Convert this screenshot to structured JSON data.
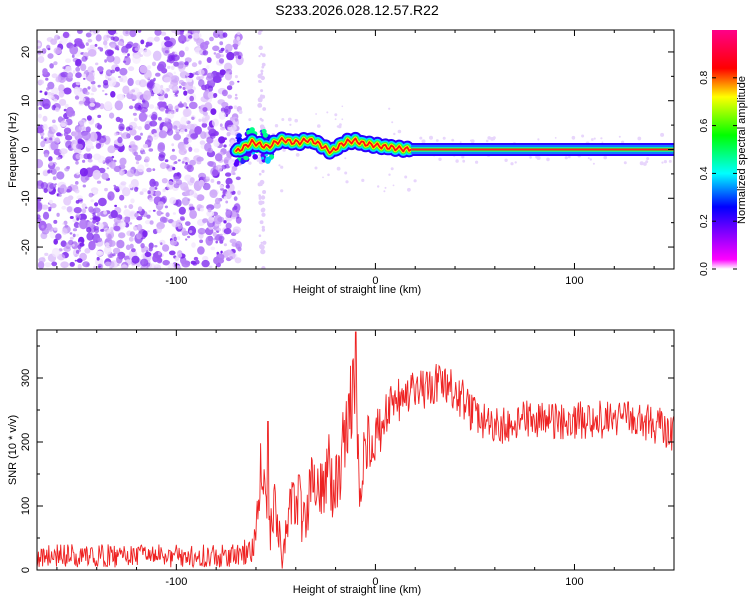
{
  "title": "S233.2026.028.12.57.R22",
  "chart_data": [
    {
      "type": "heatmap",
      "xlabel": "Height of straight line (km)",
      "ylabel": "Frequency (Hz)",
      "xlim": [
        -170,
        150
      ],
      "ylim": [
        -24.5,
        24.5
      ],
      "x_ticks": [
        -100,
        0,
        100
      ],
      "y_ticks": [
        -20,
        -10,
        0,
        10,
        20
      ],
      "x_tick_labels": [
        "-100",
        "0",
        "100"
      ],
      "y_tick_labels": [
        "-20",
        "-10",
        "0",
        "10",
        "20"
      ],
      "noise_region_x": [
        -170,
        -68
      ],
      "sparse_region_x": [
        -68,
        150
      ],
      "ridge": {
        "x": [
          -70,
          -66,
          -62,
          -58,
          -54,
          -50,
          -46,
          -42,
          -38,
          -34,
          -30,
          -26,
          -22,
          -18,
          -14,
          -10,
          -6,
          -2,
          2,
          6,
          10,
          14,
          18,
          150
        ],
        "frequency_hz": [
          -0.5,
          0.5,
          1.5,
          1.0,
          0.5,
          1.5,
          2.0,
          1.5,
          1.5,
          2.0,
          1.5,
          0.5,
          -0.5,
          0.8,
          1.6,
          1.8,
          1.2,
          1.0,
          0.7,
          0.5,
          0.3,
          0.1,
          0.0,
          0.0
        ],
        "peak_amplitude": 0.9
      },
      "colorbar": {
        "label": "Normalized spectral amplitude",
        "range": [
          0,
          1
        ],
        "ticks": [
          0.0,
          0.2,
          0.4,
          0.6,
          0.8
        ],
        "tick_labels": [
          "0.0",
          "0.2",
          "0.4",
          "0.6",
          "0.8"
        ],
        "colors": [
          "#ffffff",
          "#ff00ff",
          "#7700ff",
          "#0000ff",
          "#00ffff",
          "#00ff00",
          "#ffff00",
          "#ff0000",
          "#ff0044",
          "#ff0088"
        ]
      }
    },
    {
      "type": "line",
      "xlabel": "Height of straight line (km)",
      "ylabel": "SNR (10 * v/v)",
      "xlim": [
        -170,
        150
      ],
      "ylim": [
        0,
        375
      ],
      "x_ticks": [
        -100,
        0,
        100
      ],
      "y_ticks": [
        0,
        100,
        200,
        300
      ],
      "x_tick_labels": [
        "-100",
        "0",
        "100"
      ],
      "y_tick_labels": [
        "0",
        "100",
        "200",
        "300"
      ],
      "color": "#ee2222",
      "series": [
        {
          "x": [
            -170,
            -150,
            -130,
            -110,
            -90,
            -70,
            -62,
            -57,
            -54,
            -50,
            -47,
            -44,
            -40,
            -36,
            -32,
            -28,
            -24,
            -20,
            -17,
            -14,
            -11,
            -8,
            -5,
            -2,
            0,
            4,
            10,
            16,
            22,
            28,
            33,
            38,
            44,
            50,
            58,
            66,
            74,
            82,
            90,
            100,
            110,
            120,
            130,
            140,
            150
          ],
          "y": [
            22,
            22,
            22,
            22,
            22,
            22,
            30,
            170,
            40,
            110,
            15,
            60,
            130,
            80,
            140,
            110,
            160,
            120,
            180,
            220,
            300,
            120,
            200,
            215,
            200,
            230,
            260,
            270,
            278,
            285,
            290,
            280,
            265,
            240,
            225,
            225,
            235,
            235,
            230,
            235,
            235,
            235,
            235,
            228,
            215
          ],
          "noise_amplitude": [
            18,
            18,
            18,
            18,
            18,
            18,
            25,
            60,
            30,
            60,
            20,
            50,
            60,
            60,
            60,
            60,
            60,
            55,
            60,
            60,
            70,
            60,
            55,
            50,
            45,
            40,
            40,
            35,
            35,
            35,
            35,
            35,
            35,
            30,
            30,
            30,
            30,
            30,
            30,
            30,
            30,
            30,
            30,
            30,
            30
          ]
        }
      ]
    }
  ]
}
